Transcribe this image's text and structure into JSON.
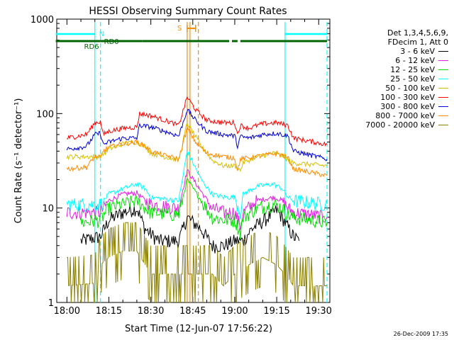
{
  "chart_data": {
    "type": "line",
    "title": "HESSI Observing Summary Count Rates",
    "xlabel": "Start Time (12-Jun-07 17:56:22)",
    "ylabel": "Count Rate (s⁻¹ detector⁻¹)",
    "yscale": "log",
    "ylim": [
      1,
      1000
    ],
    "xlim": [
      "17:56:22",
      "19:34:00"
    ],
    "x_ticks": [
      "18:00",
      "18:15",
      "18:30",
      "18:45",
      "19:00",
      "19:15",
      "19:30"
    ],
    "y_ticks": [
      "1",
      "10",
      "100",
      "1000"
    ],
    "legend_title": [
      "Det 1,3,4,5,6,9,",
      "FDecim 1, Att 0"
    ],
    "legend_position": "right",
    "series": [
      {
        "name": "3 - 6 keV",
        "color": "#000000",
        "points": [
          [
            "18:05",
            4.5
          ],
          [
            "18:12",
            5
          ],
          [
            "18:15",
            7.5
          ],
          [
            "18:20",
            9
          ],
          [
            "18:25",
            10
          ],
          [
            "18:28",
            6
          ],
          [
            "18:31",
            5
          ],
          [
            "18:33",
            4.5
          ],
          [
            "18:40",
            4.5
          ],
          [
            "18:43",
            8
          ],
          [
            "18:48",
            6
          ],
          [
            "18:52",
            4
          ],
          [
            "18:56",
            4
          ],
          [
            "19:00",
            4.5
          ],
          [
            "19:03",
            4.5
          ],
          [
            "19:06",
            6
          ],
          [
            "19:12",
            8
          ],
          [
            "19:15",
            9.5
          ],
          [
            "19:17",
            8
          ],
          [
            "19:18",
            7
          ],
          [
            "19:21",
            5
          ],
          [
            "19:23",
            4.5
          ]
        ]
      },
      {
        "name": "6 - 12 keV",
        "color": "#e020e0",
        "points": [
          [
            "18:00",
            9
          ],
          [
            "18:12",
            9
          ],
          [
            "18:15",
            12
          ],
          [
            "18:20",
            14
          ],
          [
            "18:25",
            14.5
          ],
          [
            "18:28",
            12
          ],
          [
            "18:30",
            11
          ],
          [
            "18:40",
            10
          ],
          [
            "18:43",
            25
          ],
          [
            "18:48",
            15
          ],
          [
            "18:52",
            10
          ],
          [
            "18:56",
            9
          ],
          [
            "19:00",
            9
          ],
          [
            "19:02",
            6.5
          ],
          [
            "19:03",
            9
          ],
          [
            "19:08",
            12
          ],
          [
            "19:14",
            13
          ],
          [
            "19:17",
            12
          ],
          [
            "19:19",
            10
          ],
          [
            "19:21",
            9
          ],
          [
            "19:33",
            8
          ]
        ]
      },
      {
        "name": "12 - 25 keV",
        "color": "#00e000",
        "points": [
          [
            "18:05",
            7
          ],
          [
            "18:12",
            7.5
          ],
          [
            "18:15",
            10
          ],
          [
            "18:20",
            11
          ],
          [
            "18:25",
            12
          ],
          [
            "18:28",
            10
          ],
          [
            "18:30",
            9
          ],
          [
            "18:40",
            8.5
          ],
          [
            "18:43",
            20
          ],
          [
            "18:48",
            12
          ],
          [
            "18:52",
            8
          ],
          [
            "18:56",
            7.5
          ],
          [
            "19:00",
            7.5
          ],
          [
            "19:02",
            5.5
          ],
          [
            "19:03",
            8
          ],
          [
            "19:08",
            10
          ],
          [
            "19:14",
            11
          ],
          [
            "19:17",
            10
          ],
          [
            "19:19",
            8.5
          ],
          [
            "19:21",
            8
          ],
          [
            "19:33",
            7
          ]
        ]
      },
      {
        "name": "25 - 50 keV",
        "color": "#00ffff",
        "points": [
          [
            "18:00",
            11
          ],
          [
            "18:12",
            11
          ],
          [
            "18:15",
            14
          ],
          [
            "18:20",
            16
          ],
          [
            "18:25",
            18
          ],
          [
            "18:28",
            16
          ],
          [
            "18:30",
            13
          ],
          [
            "18:40",
            12
          ],
          [
            "18:43",
            40
          ],
          [
            "18:48",
            20
          ],
          [
            "18:52",
            14
          ],
          [
            "18:56",
            13
          ],
          [
            "19:00",
            13
          ],
          [
            "19:02",
            9
          ],
          [
            "19:03",
            14
          ],
          [
            "19:08",
            17
          ],
          [
            "19:14",
            18
          ],
          [
            "19:17",
            16
          ],
          [
            "19:19",
            13
          ],
          [
            "19:21",
            12
          ],
          [
            "19:33",
            11
          ]
        ]
      },
      {
        "name": "50 - 100 keV",
        "color": "#d8c000",
        "points": [
          [
            "18:00",
            35
          ],
          [
            "18:12",
            35
          ],
          [
            "18:15",
            42
          ],
          [
            "18:20",
            48
          ],
          [
            "18:25",
            50
          ],
          [
            "18:28",
            45
          ],
          [
            "18:30",
            38
          ],
          [
            "18:40",
            32
          ],
          [
            "18:43",
            80
          ],
          [
            "18:48",
            45
          ],
          [
            "18:52",
            32
          ],
          [
            "18:56",
            28
          ],
          [
            "19:00",
            28
          ],
          [
            "19:02",
            25
          ],
          [
            "19:03",
            30
          ],
          [
            "19:08",
            35
          ],
          [
            "19:14",
            38
          ],
          [
            "19:17",
            36
          ],
          [
            "19:19",
            32
          ],
          [
            "19:21",
            30
          ],
          [
            "19:33",
            28
          ]
        ]
      },
      {
        "name": "100 - 300 keV",
        "color": "#ff0000",
        "points": [
          [
            "18:00",
            55
          ],
          [
            "18:07",
            60
          ],
          [
            "18:10",
            80
          ],
          [
            "18:12",
            82
          ],
          [
            "18:13",
            60
          ],
          [
            "18:15",
            65
          ],
          [
            "18:20",
            70
          ],
          [
            "18:25",
            72
          ],
          [
            "18:26",
            100
          ],
          [
            "18:30",
            95
          ],
          [
            "18:35",
            85
          ],
          [
            "18:40",
            75
          ],
          [
            "18:43",
            150
          ],
          [
            "18:46",
            110
          ],
          [
            "18:50",
            85
          ],
          [
            "18:56",
            80
          ],
          [
            "19:00",
            80
          ],
          [
            "19:01",
            60
          ],
          [
            "19:02",
            75
          ],
          [
            "19:05",
            70
          ],
          [
            "19:10",
            78
          ],
          [
            "19:15",
            80
          ],
          [
            "19:19",
            75
          ],
          [
            "19:21",
            55
          ],
          [
            "19:33",
            47
          ]
        ]
      },
      {
        "name": "300 - 800 keV",
        "color": "#0000d0",
        "points": [
          [
            "18:00",
            42
          ],
          [
            "18:07",
            45
          ],
          [
            "18:10",
            60
          ],
          [
            "18:12",
            62
          ],
          [
            "18:13",
            47
          ],
          [
            "18:15",
            50
          ],
          [
            "18:20",
            55
          ],
          [
            "18:25",
            55
          ],
          [
            "18:26",
            75
          ],
          [
            "18:30",
            72
          ],
          [
            "18:35",
            65
          ],
          [
            "18:40",
            58
          ],
          [
            "18:43",
            110
          ],
          [
            "18:46",
            85
          ],
          [
            "18:50",
            65
          ],
          [
            "18:56",
            60
          ],
          [
            "19:00",
            58
          ],
          [
            "19:01",
            45
          ],
          [
            "19:02",
            57
          ],
          [
            "19:05",
            55
          ],
          [
            "19:10",
            60
          ],
          [
            "19:15",
            62
          ],
          [
            "19:19",
            58
          ],
          [
            "19:21",
            40
          ],
          [
            "19:33",
            33
          ]
        ]
      },
      {
        "name": "800 - 7000 keV",
        "color": "#ff8c00",
        "points": [
          [
            "18:00",
            26
          ],
          [
            "18:07",
            27
          ],
          [
            "18:10",
            35
          ],
          [
            "18:12",
            34
          ],
          [
            "18:13",
            40
          ],
          [
            "18:15",
            44
          ],
          [
            "18:20",
            48
          ],
          [
            "18:25",
            50
          ],
          [
            "18:28",
            45
          ],
          [
            "18:30",
            40
          ],
          [
            "18:35",
            36
          ],
          [
            "18:40",
            33
          ],
          [
            "18:43",
            70
          ],
          [
            "18:46",
            50
          ],
          [
            "18:50",
            38
          ],
          [
            "18:56",
            35
          ],
          [
            "19:00",
            34
          ],
          [
            "19:01",
            25
          ],
          [
            "19:02",
            33
          ],
          [
            "19:05",
            34
          ],
          [
            "19:10",
            36
          ],
          [
            "19:15",
            38
          ],
          [
            "19:19",
            34
          ],
          [
            "19:21",
            26
          ],
          [
            "19:33",
            22
          ]
        ]
      },
      {
        "name": "7000 - 20000 keV",
        "color": "#8b8000",
        "points": [
          [
            "18:00",
            1.5
          ],
          [
            "18:10",
            1.6
          ],
          [
            "18:12",
            2.5
          ],
          [
            "18:15",
            3
          ],
          [
            "18:20",
            3.5
          ],
          [
            "18:25",
            3.5
          ],
          [
            "18:28",
            2.5
          ],
          [
            "18:30",
            2
          ],
          [
            "18:40",
            2
          ],
          [
            "18:52",
            2
          ],
          [
            "18:56",
            1.5
          ],
          [
            "19:00",
            2
          ],
          [
            "19:05",
            2.5
          ],
          [
            "19:10",
            3
          ],
          [
            "19:15",
            2.5
          ],
          [
            "19:18",
            2
          ],
          [
            "19:21",
            1.5
          ],
          [
            "19:33",
            1.5
          ]
        ]
      }
    ],
    "annotations": {
      "night_markers": [
        {
          "label": "N",
          "start": "17:56",
          "end": "18:10",
          "color": "#00ffff"
        },
        {
          "label": "",
          "start": "19:18",
          "end": "19:33",
          "color": "#00ffff"
        }
      ],
      "saa_marker": {
        "label": "S",
        "start": "18:43",
        "end": "18:46",
        "color": "#ff8c00"
      },
      "decimation_bars": [
        {
          "label": "RD6",
          "start": "17:56",
          "end": "18:12",
          "color": "#006400"
        },
        {
          "label": "RD0",
          "start": "18:12",
          "end": "18:27",
          "color": "#006400"
        },
        {
          "label": "",
          "start": "18:27",
          "end": "18:58",
          "color": "#006400"
        },
        {
          "label": "",
          "start": "18:59",
          "end": "19:01",
          "color": "#006400"
        },
        {
          "label": "",
          "start": "19:02",
          "end": "19:33",
          "color": "#006400"
        }
      ],
      "vertical_lines": [
        {
          "time": "18:10",
          "color": "#00ffff",
          "style": "solid"
        },
        {
          "time": "18:12",
          "color": "#00ffff",
          "style": "dashed"
        },
        {
          "time": "18:43",
          "color": "#ff8c00",
          "style": "solid"
        },
        {
          "time": "18:44",
          "color": "#ff8c00",
          "style": "solid"
        },
        {
          "time": "18:47",
          "color": "#ff8c00",
          "style": "dashed"
        },
        {
          "time": "19:18",
          "color": "#00ffff",
          "style": "solid"
        },
        {
          "time": "19:33",
          "color": "#00ffff",
          "style": "dashed"
        }
      ]
    }
  },
  "footer": {
    "timestamp": "26-Dec-2009 17:35"
  }
}
